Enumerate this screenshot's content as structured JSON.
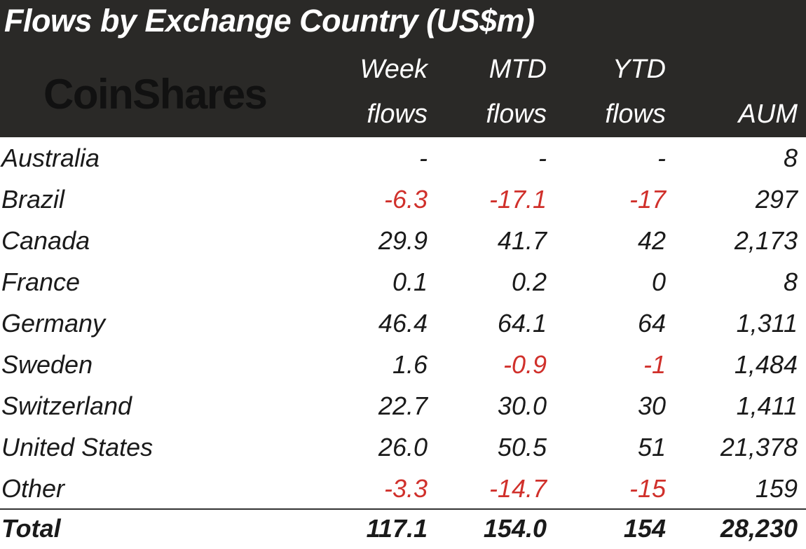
{
  "title": "Flows by Exchange Country (US$m)",
  "logo": "CoinShares",
  "colors": {
    "header_bg": "#2a2927",
    "negative": "#d0302b",
    "text": "#1a1a1a"
  },
  "chart_data": {
    "type": "table",
    "columns": [
      {
        "line1": "Week",
        "line2": "flows"
      },
      {
        "line1": "MTD",
        "line2": "flows"
      },
      {
        "line1": "YTD",
        "line2": "flows"
      },
      {
        "line1": "",
        "line2": "AUM"
      }
    ],
    "rows": [
      {
        "label": "Australia",
        "values": [
          "-",
          "-",
          "-",
          "8"
        ]
      },
      {
        "label": "Brazil",
        "values": [
          "-6.3",
          "-17.1",
          "-17",
          "297"
        ]
      },
      {
        "label": "Canada",
        "values": [
          "29.9",
          "41.7",
          "42",
          "2,173"
        ]
      },
      {
        "label": "France",
        "values": [
          "0.1",
          "0.2",
          "0",
          "8"
        ]
      },
      {
        "label": "Germany",
        "values": [
          "46.4",
          "64.1",
          "64",
          "1,311"
        ]
      },
      {
        "label": "Sweden",
        "values": [
          "1.6",
          "-0.9",
          "-1",
          "1,484"
        ]
      },
      {
        "label": "Switzerland",
        "values": [
          "22.7",
          "30.0",
          "30",
          "1,411"
        ]
      },
      {
        "label": "United States",
        "values": [
          "26.0",
          "50.5",
          "51",
          "21,378"
        ]
      },
      {
        "label": "Other",
        "values": [
          "-3.3",
          "-14.7",
          "-15",
          "159"
        ]
      }
    ],
    "total": {
      "label": "Total",
      "values": [
        "117.1",
        "154.0",
        "154",
        "28,230"
      ]
    }
  }
}
